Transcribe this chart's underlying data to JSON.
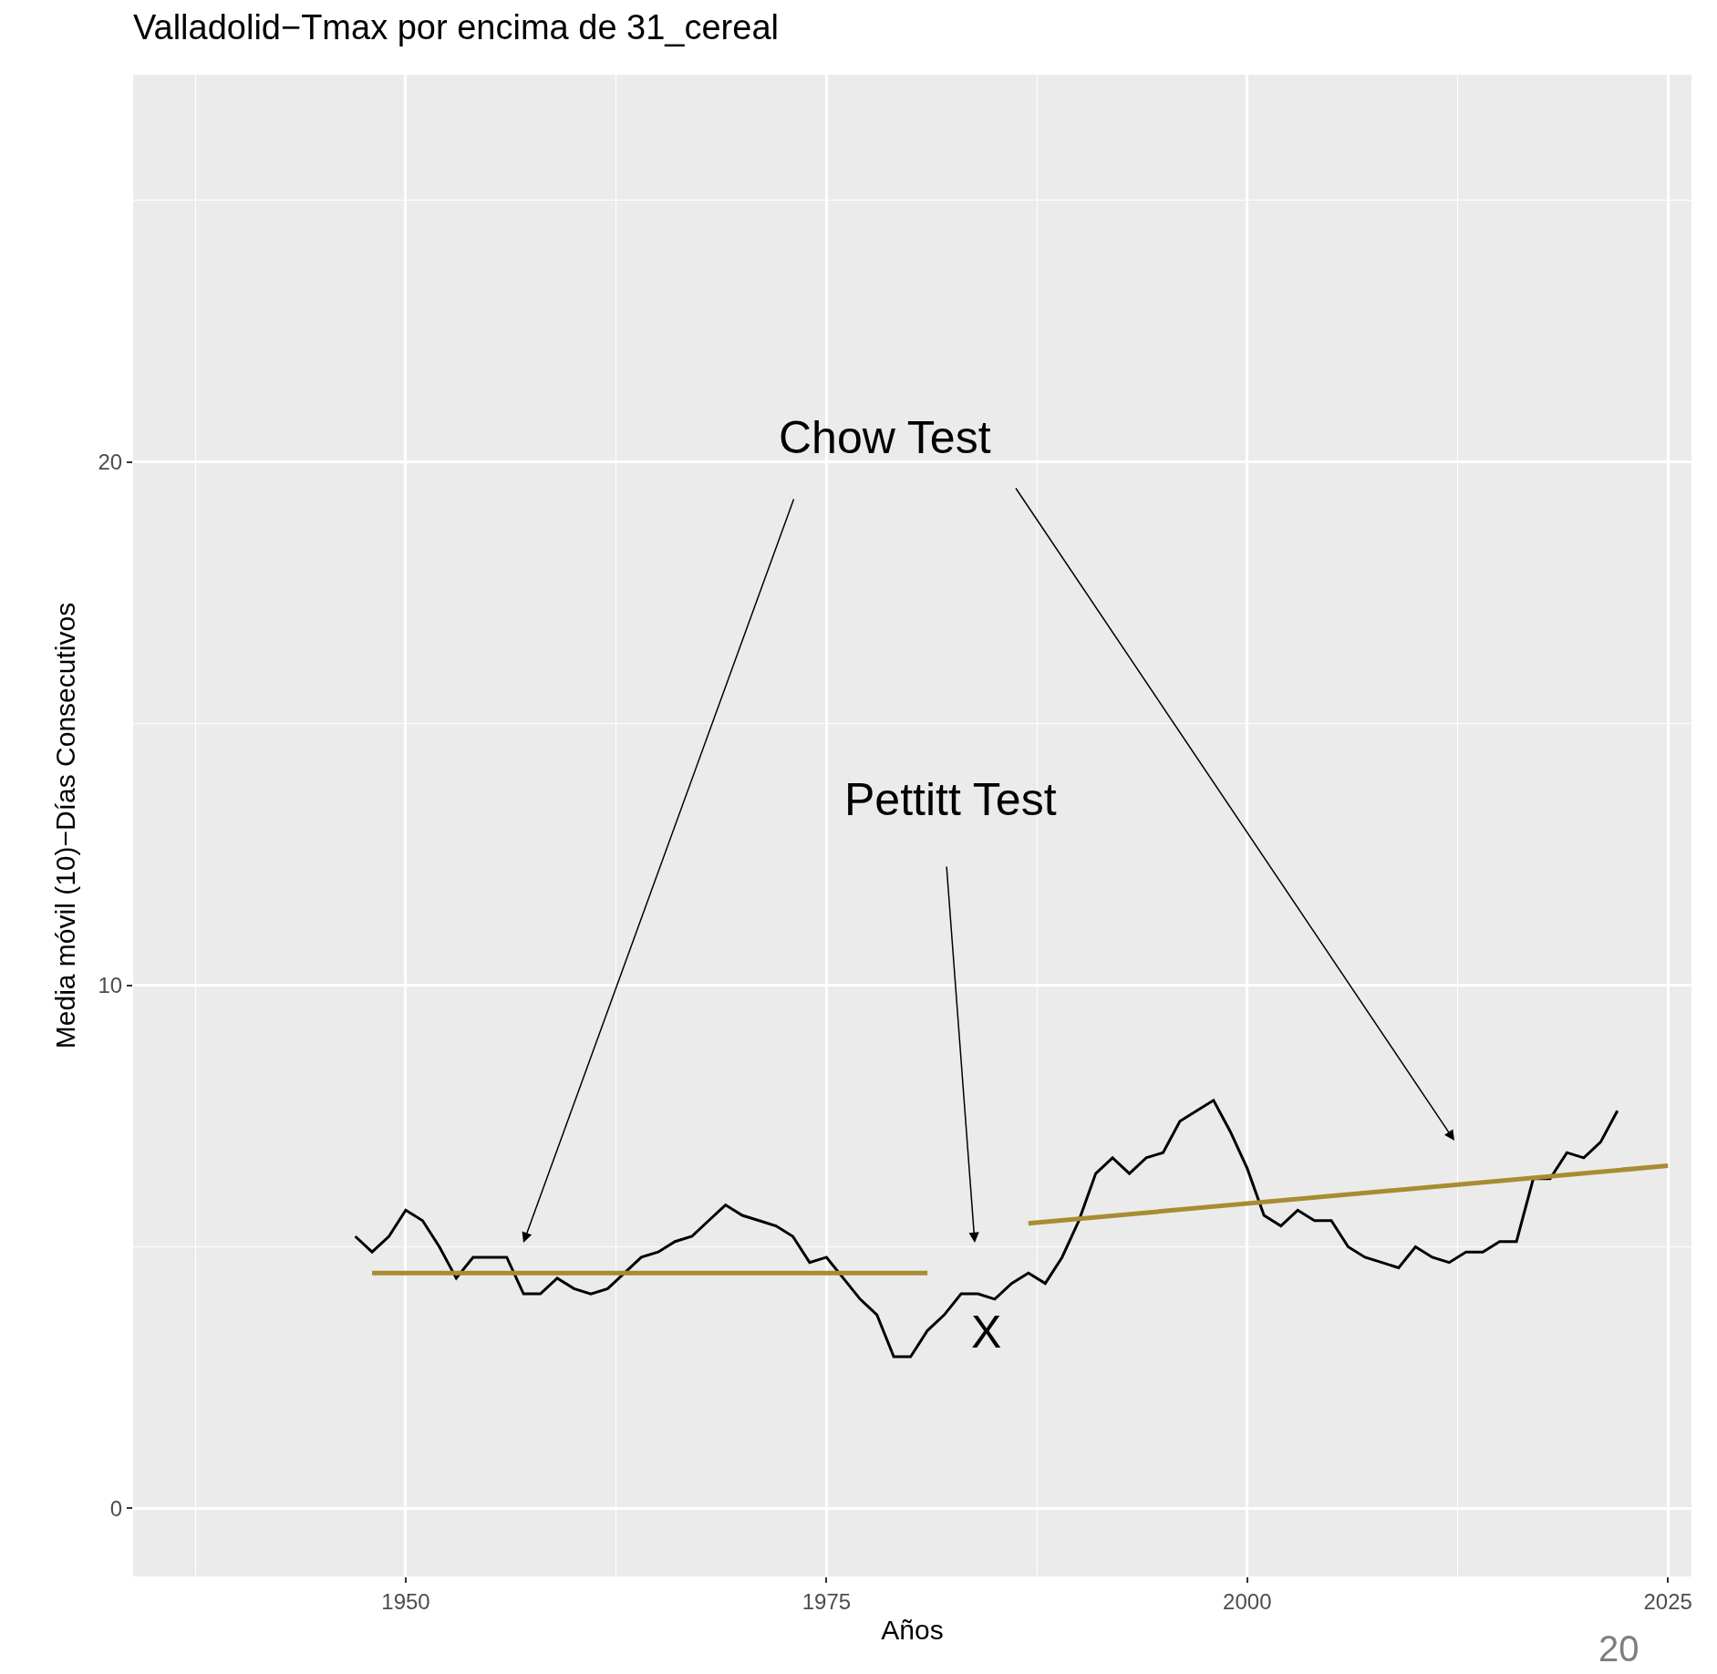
{
  "chart_data": {
    "type": "line",
    "title": "Valladolid−Tmax por encima de 31_cereal",
    "xlabel": "Años",
    "ylabel": "Media móvil (10)−Días Consecutivos",
    "xlim": [
      1933.8,
      2026.4
    ],
    "xticks": [
      1950,
      1975,
      2000,
      2025
    ],
    "ylim": [
      -1.3,
      27.4
    ],
    "yticks": [
      0,
      10,
      20
    ],
    "grid": true,
    "legend": false,
    "series": [
      {
        "color": "#000000",
        "x": [
          1947,
          1948,
          1949,
          1950,
          1951,
          1952,
          1953,
          1954,
          1955,
          1956,
          1957,
          1958,
          1959,
          1960,
          1961,
          1962,
          1963,
          1964,
          1965,
          1966,
          1967,
          1968,
          1969,
          1970,
          1971,
          1972,
          1973,
          1974,
          1975,
          1976,
          1977,
          1978,
          1979,
          1980,
          1981,
          1982,
          1983,
          1984,
          1985,
          1986,
          1987,
          1988,
          1989,
          1990,
          1991,
          1992,
          1993,
          1994,
          1995,
          1996,
          1997,
          1998,
          1999,
          2000,
          2001,
          2002,
          2003,
          2004,
          2005,
          2006,
          2007,
          2008,
          2009,
          2010,
          2011,
          2012,
          2013,
          2014,
          2015,
          2016,
          2017,
          2018,
          2019,
          2020,
          2021,
          2022
        ],
        "values": [
          5.2,
          4.9,
          5.2,
          5.7,
          5.5,
          5.0,
          4.4,
          4.8,
          4.8,
          4.8,
          4.1,
          4.1,
          4.4,
          4.2,
          4.1,
          4.2,
          4.5,
          4.8,
          4.9,
          5.1,
          5.2,
          5.5,
          5.8,
          5.6,
          5.5,
          5.4,
          5.2,
          4.7,
          4.8,
          4.4,
          4.0,
          3.7,
          2.9,
          2.9,
          3.4,
          3.7,
          4.1,
          4.1,
          4.0,
          4.3,
          4.5,
          4.3,
          4.8,
          5.5,
          6.4,
          6.7,
          6.4,
          6.7,
          6.8,
          7.4,
          7.6,
          7.8,
          7.2,
          6.5,
          5.6,
          5.4,
          5.7,
          5.5,
          5.5,
          5.0,
          4.8,
          4.7,
          4.6,
          5.0,
          4.8,
          4.7,
          4.9,
          4.9,
          5.1,
          5.1,
          6.3,
          6.3,
          6.8,
          6.7,
          7.0,
          7.6
        ]
      },
      {
        "color": "#a88c32",
        "x": [
          1948,
          1981
        ],
        "values": [
          4.5,
          4.5
        ]
      },
      {
        "color": "#a88c32",
        "x": [
          1987,
          2025
        ],
        "values": [
          5.45,
          6.55
        ]
      }
    ],
    "annotations": [
      "Chow Test",
      "Pettitt Test",
      {
        "text": "X",
        "x": 1984.5,
        "y": 4.0
      },
      "20"
    ]
  }
}
